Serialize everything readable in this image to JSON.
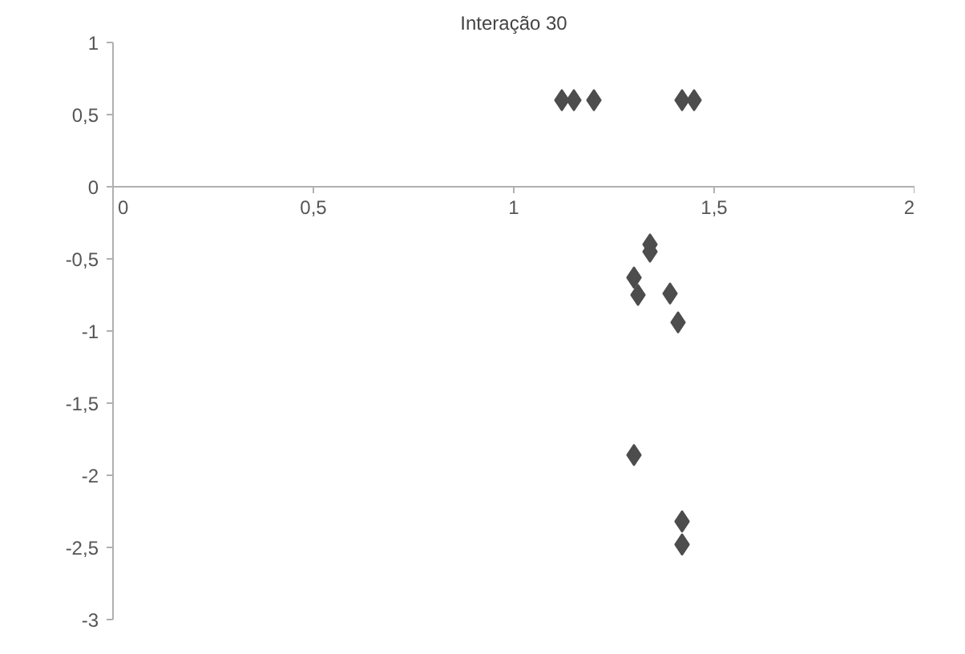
{
  "chart_data": {
    "type": "scatter",
    "title": "Interação 30",
    "marker": "diamond",
    "grid": false,
    "xlim": [
      0,
      2
    ],
    "xticks": [
      0,
      {
        "value": 0.5,
        "label": "0,5"
      },
      1,
      {
        "value": 1.5,
        "label": "1,5"
      },
      2
    ],
    "ylim": [
      -3,
      1
    ],
    "yticks": [
      {
        "value": -3,
        "label": "-3"
      },
      {
        "value": -2.5,
        "label": "-2,5"
      },
      {
        "value": -2,
        "label": "-2"
      },
      {
        "value": -1.5,
        "label": "-1,5"
      },
      {
        "value": -1,
        "label": "-1"
      },
      {
        "value": -0.5,
        "label": "-0,5"
      },
      0,
      {
        "value": 0.5,
        "label": "0,5"
      },
      1
    ],
    "series": [
      {
        "color": "#4d4d4d",
        "x": [
          1.12,
          1.15,
          1.2,
          1.42,
          1.45,
          1.34,
          1.34,
          1.3,
          1.31,
          1.39,
          1.41,
          1.3,
          1.42,
          1.42
        ],
        "values": [
          0.6,
          0.6,
          0.6,
          0.6,
          0.6,
          -0.4,
          -0.45,
          -0.63,
          -0.75,
          -0.74,
          -0.94,
          -1.86,
          -2.32,
          -2.48
        ]
      }
    ]
  }
}
